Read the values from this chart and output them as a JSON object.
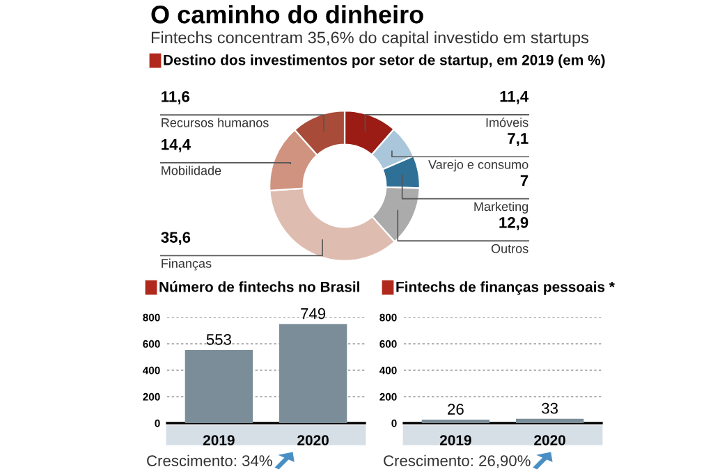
{
  "chart_data": [
    {
      "type": "donut",
      "title": "O caminho do dinheiro",
      "subtitle": "Fintechs concentram 35,6% do capital investido em startups",
      "annotations": [
        "Destino dos investimentos por setor de startup, em 2019 (em %)"
      ],
      "categories": [
        "Imóveis",
        "Varejo e consumo",
        "Marketing",
        "Outros",
        "Finanças",
        "Mobilidade",
        "Recursos humanos"
      ],
      "values": [
        11.4,
        7.1,
        7,
        12.9,
        35.6,
        14.4,
        11.6
      ],
      "value_labels": [
        "11,4",
        "7,1",
        "7",
        "12,9",
        "35,6",
        "14,4",
        "11,6"
      ],
      "colors": [
        "#9b1c14",
        "#a9c6da",
        "#2f7096",
        "#ababab",
        "#dfbcb0",
        "#cf9380",
        "#a84b39"
      ]
    },
    {
      "type": "bar",
      "title": "Número de fintechs no Brasil",
      "annotations": [
        "Crescimento: 34%"
      ],
      "categories": [
        "2019",
        "2020"
      ],
      "values": [
        553,
        749
      ],
      "color": "#7a8d98",
      "ylim": [
        0,
        800
      ],
      "yticks": [
        0,
        200,
        400,
        600,
        800
      ],
      "grid": "y",
      "data_labels": true
    },
    {
      "type": "bar",
      "title": "Fintechs de finanças pessoais *",
      "annotations": [
        "Crescimento: 26,90%"
      ],
      "categories": [
        "2019",
        "2020"
      ],
      "values": [
        26,
        33
      ],
      "color": "#7a8d98",
      "ylim": [
        0,
        800
      ],
      "yticks": [
        0,
        200,
        400,
        600,
        800
      ],
      "grid": "y",
      "data_labels": true
    }
  ]
}
